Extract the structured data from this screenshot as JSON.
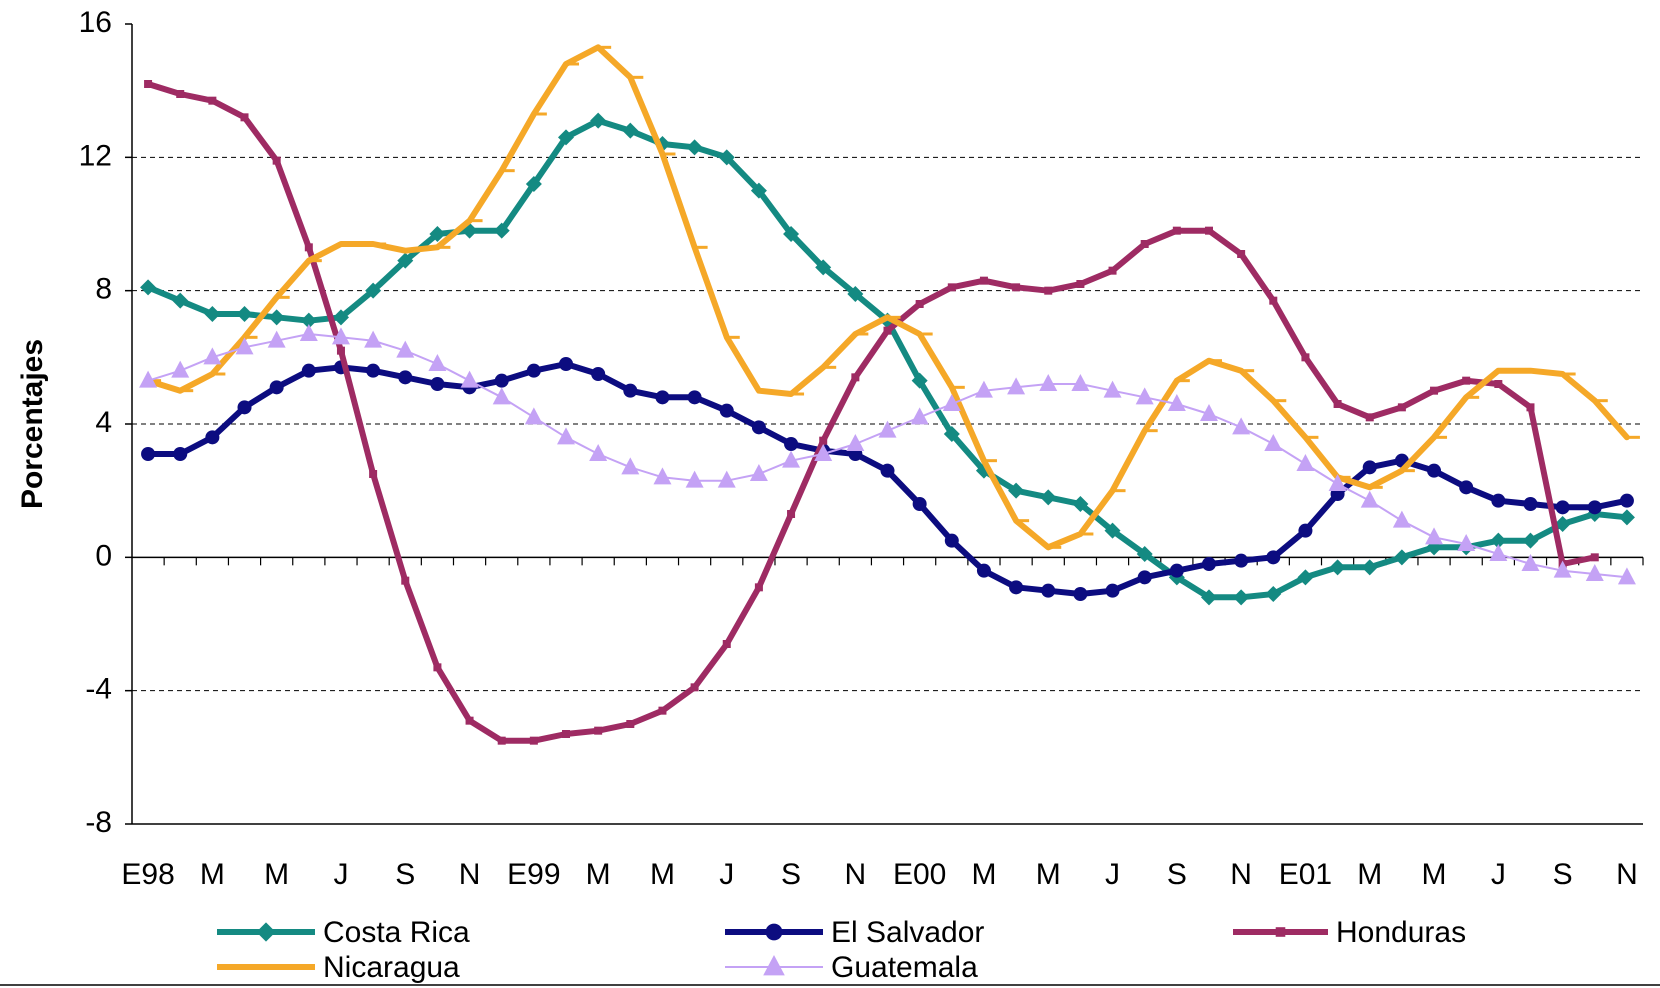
{
  "chart_data": {
    "type": "line",
    "y_label": "Porcentajes",
    "categories": [
      "E98",
      null,
      "M",
      null,
      "M",
      null,
      "J",
      null,
      "S",
      null,
      "N",
      null,
      "E99",
      null,
      "M",
      null,
      "M",
      null,
      "J",
      null,
      "S",
      null,
      "N",
      null,
      "E00",
      null,
      "M",
      null,
      "M",
      null,
      "J",
      null,
      "S",
      null,
      "N",
      null,
      "E01",
      null,
      "M",
      null,
      "M",
      null,
      "J",
      null,
      "S",
      null,
      "N"
    ],
    "ylim": [
      -8,
      16
    ],
    "yticks": [
      -8,
      -4,
      0,
      4,
      8,
      12,
      16
    ],
    "grid": true,
    "series": [
      {
        "name": "Costa Rica",
        "color": "#148a82",
        "marker": "diamond",
        "values": [
          8.1,
          7.7,
          7.3,
          7.3,
          7.2,
          7.1,
          7.2,
          8.0,
          8.9,
          9.7,
          9.8,
          9.8,
          11.2,
          12.6,
          13.1,
          12.8,
          12.4,
          12.3,
          12.0,
          11.0,
          9.7,
          8.7,
          7.9,
          7.1,
          5.3,
          3.7,
          2.6,
          2.0,
          1.8,
          1.6,
          0.8,
          0.1,
          -0.6,
          -1.2,
          -1.2,
          -1.1,
          -0.6,
          -0.3,
          -0.3,
          0.0,
          0.3,
          0.3,
          0.5,
          0.5,
          1.0,
          1.3,
          1.2
        ]
      },
      {
        "name": "El Salvador",
        "color": "#0c0c80",
        "marker": "circle",
        "values": [
          3.1,
          3.1,
          3.6,
          4.5,
          5.1,
          5.6,
          5.7,
          5.6,
          5.4,
          5.2,
          5.1,
          5.3,
          5.6,
          5.8,
          5.5,
          5.0,
          4.8,
          4.8,
          4.4,
          3.9,
          3.4,
          3.2,
          3.1,
          2.6,
          1.6,
          0.5,
          -0.4,
          -0.9,
          -1.0,
          -1.1,
          -1.0,
          -0.6,
          -0.4,
          -0.2,
          -0.1,
          0.0,
          0.8,
          1.9,
          2.7,
          2.9,
          2.6,
          2.1,
          1.7,
          1.6,
          1.5,
          1.5,
          1.7
        ]
      },
      {
        "name": "Honduras",
        "color": "#9e2b63",
        "marker": "square",
        "values": [
          14.2,
          13.9,
          13.7,
          13.2,
          11.9,
          9.3,
          6.2,
          2.5,
          -0.7,
          -3.3,
          -4.9,
          -5.5,
          -5.5,
          -5.3,
          -5.2,
          -5.0,
          -4.6,
          -3.9,
          -2.6,
          -0.9,
          1.3,
          3.5,
          5.4,
          6.8,
          7.6,
          8.1,
          8.3,
          8.1,
          8.0,
          8.2,
          8.6,
          9.4,
          9.8,
          9.8,
          9.1,
          7.7,
          6.0,
          4.6,
          4.2,
          4.5,
          5.0,
          5.3,
          5.2,
          4.5,
          -0.2,
          0.0,
          null
        ]
      },
      {
        "name": "Nicaragua",
        "color": "#f5a828",
        "marker": "dash",
        "values": [
          5.3,
          5.0,
          5.5,
          6.6,
          7.8,
          8.9,
          9.4,
          9.4,
          9.2,
          9.3,
          10.1,
          11.6,
          13.3,
          14.8,
          15.3,
          14.4,
          12.1,
          9.3,
          6.6,
          5.0,
          4.9,
          5.7,
          6.7,
          7.2,
          6.7,
          5.1,
          2.9,
          1.1,
          0.3,
          0.7,
          2.0,
          3.8,
          5.3,
          5.9,
          5.6,
          4.7,
          3.6,
          2.4,
          2.1,
          2.6,
          3.6,
          4.8,
          5.6,
          5.6,
          5.5,
          4.7,
          3.6
        ]
      },
      {
        "name": "Guatemala",
        "color": "#c4a2f5",
        "marker": "triangle",
        "values": [
          5.3,
          5.6,
          6.0,
          6.3,
          6.5,
          6.7,
          6.6,
          6.5,
          6.2,
          5.8,
          5.3,
          4.8,
          4.2,
          3.6,
          3.1,
          2.7,
          2.4,
          2.3,
          2.3,
          2.5,
          2.9,
          3.1,
          3.4,
          3.8,
          4.2,
          4.6,
          5.0,
          5.1,
          5.2,
          5.2,
          5.0,
          4.8,
          4.6,
          4.3,
          3.9,
          3.4,
          2.8,
          2.2,
          1.7,
          1.1,
          0.6,
          0.4,
          0.1,
          -0.2,
          -0.4,
          -0.5,
          -0.6
        ]
      }
    ]
  }
}
